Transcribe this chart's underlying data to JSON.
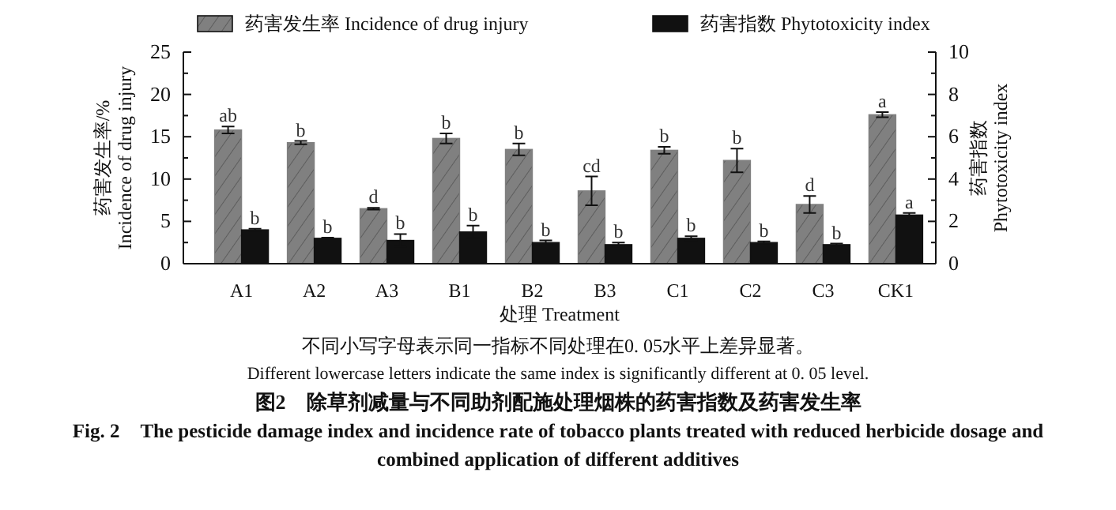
{
  "chart_data": {
    "type": "bar",
    "categories": [
      "A1",
      "A2",
      "A3",
      "B1",
      "B2",
      "B3",
      "C1",
      "C2",
      "C3",
      "CK1"
    ],
    "series": [
      {
        "name": "药害发生率  Incidence of drug injury",
        "color": "#808080",
        "axis": "y",
        "values": [
          15.8,
          14.3,
          6.5,
          14.8,
          13.5,
          8.6,
          13.4,
          12.2,
          7.0,
          17.6
        ],
        "errors": [
          0.4,
          0.2,
          0.1,
          0.6,
          0.7,
          1.7,
          0.4,
          1.4,
          1.0,
          0.3
        ],
        "value_labels": [
          "ab",
          "b",
          "d",
          "b",
          "b",
          "cd",
          "b",
          "b",
          "d",
          "a"
        ]
      },
      {
        "name": "药害指数  Phytotoxicity index",
        "color": "#111111",
        "axis": "y2",
        "values": [
          1.6,
          1.2,
          1.1,
          1.5,
          1.0,
          0.9,
          1.2,
          1.0,
          0.9,
          2.3
        ],
        "errors": [
          0.05,
          0.03,
          0.3,
          0.3,
          0.1,
          0.1,
          0.1,
          0.05,
          0.05,
          0.1
        ],
        "value_labels": [
          "b",
          "b",
          "b",
          "b",
          "b",
          "b",
          "b",
          "b",
          "b",
          "a"
        ]
      }
    ],
    "ylim": [
      0,
      25
    ],
    "yticks": [
      0,
      {
        "value": 2.5,
        "label": null
      },
      5,
      {
        "value": 7.5,
        "label": null
      },
      10,
      {
        "value": 12.5,
        "label": null
      },
      15,
      {
        "value": 17.5,
        "label": null
      },
      20,
      {
        "value": 22.5,
        "label": null
      },
      25
    ],
    "y2lim": [
      0,
      10
    ],
    "y2ticks": [
      0,
      {
        "value": 1,
        "label": null
      },
      2,
      {
        "value": 3,
        "label": null
      },
      4,
      {
        "value": 5,
        "label": null
      },
      6,
      {
        "value": 7,
        "label": null
      },
      8,
      {
        "value": 9,
        "label": null
      },
      10
    ],
    "xlabel": "处理  Treatment",
    "ylabel": "药害发生率/%\nIncidence of drug injury",
    "y2label": "药害指数\nPhytotoxicity index",
    "legend": "top",
    "annotations": [
      "不同小写字母表示同一指标不同处理在0. 05水平上差异显著。",
      "Different lowercase letters indicate the same index is significantly different at 0. 05 level.",
      "图2　除草剂减量与不同助剂配施处理烟株的药害指数及药害发生率",
      "Fig. 2　The pesticide damage index and incidence rate of tobacco plants treated with reduced herbicide dosage and combined application of different additives"
    ]
  }
}
